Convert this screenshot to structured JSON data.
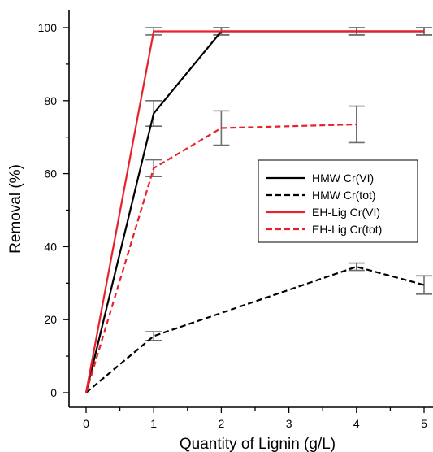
{
  "chart_data": {
    "type": "line",
    "xlabel": "Quantity of Lignin (g/L)",
    "ylabel": "Removal (%)",
    "xlim": [
      0,
      5
    ],
    "ylim": [
      0,
      100
    ],
    "xticks": [
      "0",
      "1",
      "2",
      "3",
      "4",
      "5"
    ],
    "yticks": [
      "0",
      "20",
      "40",
      "60",
      "80",
      "100"
    ],
    "grid": false,
    "legend_position": "right",
    "series": [
      {
        "name": "HMW Cr(VI)",
        "color": "#000000",
        "dash": "solid",
        "x": [
          0,
          1,
          2,
          4,
          5
        ],
        "y": [
          0,
          76.5,
          99,
          99,
          99
        ],
        "err": [
          null,
          3.5,
          1,
          1,
          1
        ]
      },
      {
        "name": "HMW Cr(tot)",
        "color": "#000000",
        "dash": "dashed",
        "x": [
          0,
          1,
          4,
          5
        ],
        "y": [
          0,
          15.5,
          34.5,
          29.5
        ],
        "err": [
          null,
          1.2,
          1,
          2.5
        ]
      },
      {
        "name": "EH-Lig Cr(VI)",
        "color": "#e8202a",
        "dash": "solid",
        "x": [
          0,
          1,
          2,
          4,
          5
        ],
        "y": [
          0,
          99,
          99,
          99,
          99
        ],
        "err": [
          null,
          1,
          1,
          1,
          1
        ]
      },
      {
        "name": "EH-Lig Cr(tot)",
        "color": "#e8202a",
        "dash": "dashed",
        "x": [
          0,
          1,
          2,
          4
        ],
        "y": [
          0,
          61.5,
          72.5,
          73.5
        ],
        "err": [
          null,
          2.3,
          4.7,
          5
        ]
      }
    ]
  }
}
